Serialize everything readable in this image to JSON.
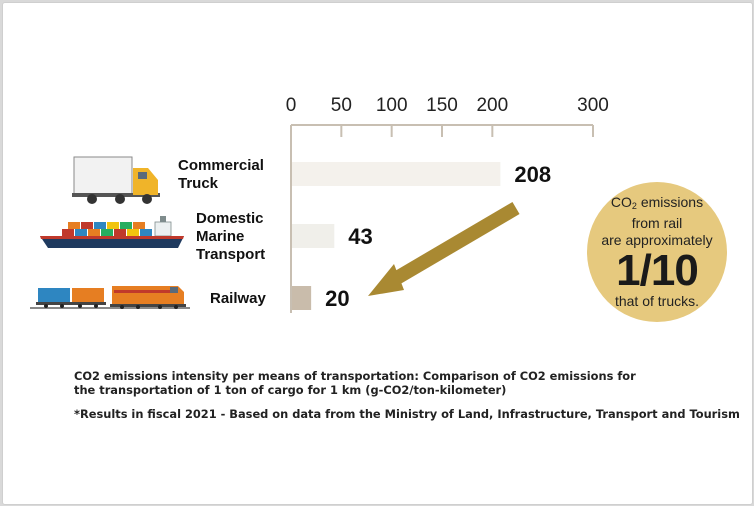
{
  "chart_data": {
    "type": "bar",
    "orientation": "horizontal",
    "categories": [
      [
        "Commercial",
        "Truck"
      ],
      [
        "Domestic",
        "Marine",
        "Transport"
      ],
      [
        "Railway"
      ]
    ],
    "values": [
      208,
      43,
      20
    ],
    "value_labels": [
      "208",
      "43",
      "20"
    ],
    "xlim": [
      0,
      300
    ],
    "xticks": [
      0,
      50,
      100,
      150,
      200,
      300
    ],
    "bar_colors": [
      "#f4f1ec",
      "#f0efea",
      "#c9bcab"
    ],
    "axis_color": "#c8bfb2",
    "arrow_color": "#a98932",
    "legend": "none",
    "grid": false
  },
  "callout": {
    "line1": "CO",
    "line1_sub": "2",
    "line1_rest": " emissions",
    "line2": "from rail",
    "line3": "are approximately",
    "big": "1/10",
    "line4": "that of trucks.",
    "color": "#e6c97e"
  },
  "notes": {
    "line1": "CO2 emissions intensity per means of transportation: Comparison of CO2 emissions for",
    "line2": "the transportation of 1 ton of cargo for 1 km (g-CO2/ton-kilometer)",
    "line3": "*Results in fiscal 2021 - Based on data from the Ministry of Land, Infrastructure, Transport and Tourism"
  },
  "icons": [
    "truck-icon",
    "cargo-ship-icon",
    "freight-train-icon"
  ]
}
